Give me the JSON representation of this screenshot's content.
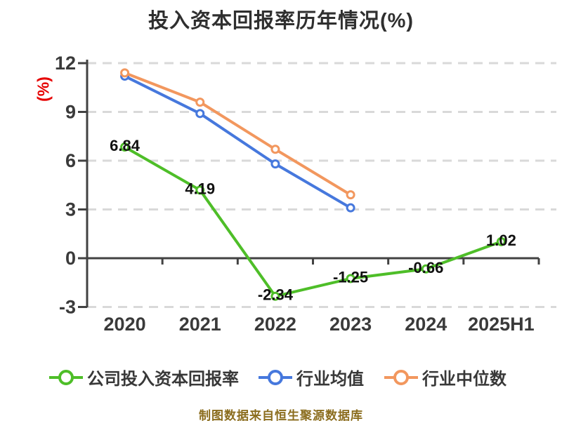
{
  "title": "投入资本回报率历年情况(%)",
  "footer": "制图数据来自恒生聚源数据库",
  "y_axis": {
    "unit": "(%)",
    "tick_labels": [
      "12",
      "9",
      "6",
      "3",
      "0",
      "-3"
    ],
    "tick_values": [
      12,
      9,
      6,
      3,
      0,
      -3
    ]
  },
  "colors": {
    "background": "#ffffff",
    "grid": "#d9d9d9",
    "axis": "#424242",
    "tick_text": "#3a3a3a",
    "data_label": "#111111",
    "y_unit": "#e60000",
    "footer": "#8b6d1e",
    "company_green": "#4ebe28",
    "industry_avg_blue": "#4678dd",
    "industry_median_orange": "#f2975e"
  },
  "chart_data": {
    "type": "line",
    "title": "投入资本回报率历年情况(%)",
    "xlabel": "",
    "ylabel": "(%)",
    "categories": [
      "2020",
      "2021",
      "2022",
      "2023",
      "2024",
      "2025H1"
    ],
    "series": [
      {
        "key": "company-roic",
        "name": "公司投入资本回报率",
        "color": "#4ebe28",
        "values": [
          6.84,
          4.19,
          -2.34,
          -1.25,
          -0.66,
          1.02
        ],
        "point_labels": [
          "6.84",
          "4.19",
          "-2.34",
          "-1.25",
          "-0.66",
          "1.02"
        ],
        "labels_shown": true
      },
      {
        "key": "industry-avg",
        "name": "行业均值",
        "color": "#4678dd",
        "values": [
          11.2,
          8.9,
          5.8,
          3.1,
          null,
          null
        ],
        "labels_shown": false
      },
      {
        "key": "industry-median",
        "name": "行业中位数",
        "color": "#f2975e",
        "values": [
          11.4,
          9.6,
          6.7,
          3.9,
          null,
          null
        ],
        "labels_shown": false
      }
    ],
    "ylim": [
      -3,
      12
    ],
    "ytick_interval": 3,
    "grid": "dashed-horizontal",
    "legend_position": "bottom"
  }
}
